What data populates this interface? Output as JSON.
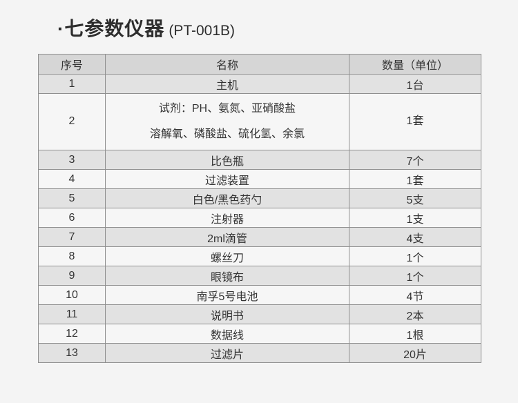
{
  "page": {
    "background": "#f4f4f4"
  },
  "title": {
    "text": "·七参数仪器",
    "model": "(PT-001B)"
  },
  "table": {
    "headers": [
      "序号",
      "名称",
      "数量（单位）"
    ],
    "rows": [
      {
        "no": "1",
        "name": "主机",
        "qty": "1台"
      },
      {
        "no": "2",
        "name": "试剂：PH、氨氮、亚硝酸盐\n溶解氧、磷酸盐、硫化氢、余氯",
        "qty": "1套"
      },
      {
        "no": "3",
        "name": "比色瓶",
        "qty": "7个"
      },
      {
        "no": "4",
        "name": "过滤装置",
        "qty": "1套"
      },
      {
        "no": "5",
        "name": "白色/黑色药勺",
        "qty": "5支"
      },
      {
        "no": "6",
        "name": "注射器",
        "qty": "1支"
      },
      {
        "no": "7",
        "name": "2ml滴管",
        "qty": "4支"
      },
      {
        "no": "8",
        "name": "螺丝刀",
        "qty": "1个"
      },
      {
        "no": "9",
        "name": "眼镜布",
        "qty": "1个"
      },
      {
        "no": "10",
        "name": "南孚5号电池",
        "qty": "4节"
      },
      {
        "no": "11",
        "name": "说明书",
        "qty": "2本"
      },
      {
        "no": "12",
        "name": "数据线",
        "qty": "1根"
      },
      {
        "no": "13",
        "name": "过滤片",
        "qty": "20片"
      }
    ]
  },
  "colors": {
    "page_bg": "#f4f4f4",
    "header_bg": "#d6d6d6",
    "row_odd_bg": "#e2e2e2",
    "row_even_bg": "#f6f6f6",
    "border": "#8f8f8f",
    "text": "#333333"
  }
}
